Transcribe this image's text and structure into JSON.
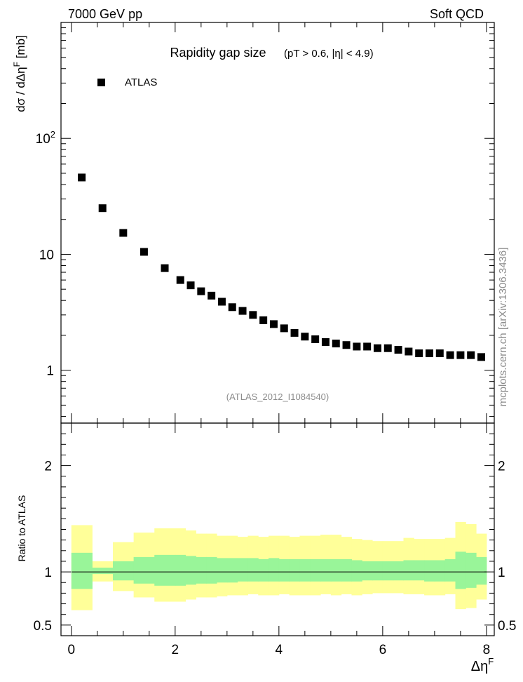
{
  "header": {
    "left": "7000 GeV pp",
    "right": "Soft QCD"
  },
  "title": {
    "main": "Rapidity gap size",
    "sub": "(pT > 0.6, |η| < 4.9)"
  },
  "legend": {
    "label": "ATLAS",
    "marker": "filled-square",
    "position": "top-left"
  },
  "analysis_id": "(ATLAS_2012_I1084540)",
  "side_credit": "mcplots.cern.ch [arXiv:1306.3436]",
  "colors": {
    "marker": "#000000",
    "band_inner": "#99f599",
    "band_outer": "#ffff99",
    "credit_grey": "#8c8c8c"
  },
  "chart_data": [
    {
      "type": "scatter",
      "title": "Rapidity gap size",
      "ylabel": "dσ / dΔη^F [mb]",
      "xlabel": "",
      "yscale": "log",
      "xlim": [
        -0.2,
        8.15
      ],
      "ylim": [
        0.35,
        1000
      ],
      "y_tick_labels": [
        "1",
        "10",
        "10^2"
      ],
      "series": [
        {
          "name": "ATLAS",
          "x": [
            0.2,
            0.6,
            1.0,
            1.4,
            1.8,
            2.1,
            2.3,
            2.5,
            2.7,
            2.9,
            3.1,
            3.3,
            3.5,
            3.7,
            3.9,
            4.1,
            4.3,
            4.5,
            4.7,
            4.9,
            5.1,
            5.3,
            5.5,
            5.7,
            5.9,
            6.1,
            6.3,
            6.5,
            6.7,
            6.9,
            7.1,
            7.3,
            7.5,
            7.7,
            7.9
          ],
          "y": [
            46,
            25,
            15.3,
            10.5,
            7.6,
            6.0,
            5.4,
            4.8,
            4.4,
            3.9,
            3.5,
            3.25,
            3.0,
            2.7,
            2.5,
            2.3,
            2.1,
            1.95,
            1.85,
            1.75,
            1.7,
            1.65,
            1.6,
            1.6,
            1.55,
            1.55,
            1.5,
            1.45,
            1.4,
            1.4,
            1.4,
            1.35,
            1.35,
            1.35,
            1.3
          ]
        }
      ]
    },
    {
      "type": "area",
      "ylabel": "Ratio to ATLAS",
      "xlabel": "Δη^F",
      "xlim": [
        -0.2,
        8.15
      ],
      "ylim": [
        0.4,
        2.4
      ],
      "x_tick_labels": [
        "0",
        "2",
        "4",
        "6",
        "8"
      ],
      "y_tick_labels": [
        "0.5",
        "1",
        "2"
      ],
      "reference_line": 1.0,
      "bins": [
        [
          0.0,
          0.4
        ],
        [
          0.4,
          0.8
        ],
        [
          0.8,
          1.2
        ],
        [
          1.2,
          1.6
        ],
        [
          1.6,
          2.0
        ],
        [
          2.0,
          2.2
        ],
        [
          2.2,
          2.4
        ],
        [
          2.4,
          2.6
        ],
        [
          2.6,
          2.8
        ],
        [
          2.8,
          3.0
        ],
        [
          3.0,
          3.2
        ],
        [
          3.2,
          3.4
        ],
        [
          3.4,
          3.6
        ],
        [
          3.6,
          3.8
        ],
        [
          3.8,
          4.0
        ],
        [
          4.0,
          4.2
        ],
        [
          4.2,
          4.4
        ],
        [
          4.4,
          4.6
        ],
        [
          4.6,
          4.8
        ],
        [
          4.8,
          5.0
        ],
        [
          5.0,
          5.2
        ],
        [
          5.2,
          5.4
        ],
        [
          5.4,
          5.6
        ],
        [
          5.6,
          5.8
        ],
        [
          5.8,
          6.0
        ],
        [
          6.0,
          6.2
        ],
        [
          6.2,
          6.4
        ],
        [
          6.4,
          6.6
        ],
        [
          6.6,
          6.8
        ],
        [
          6.8,
          7.0
        ],
        [
          7.0,
          7.2
        ],
        [
          7.2,
          7.4
        ],
        [
          7.4,
          7.6
        ],
        [
          7.6,
          7.8
        ],
        [
          7.8,
          8.0
        ]
      ],
      "series": [
        {
          "name": "",
          "low": [
            0.64,
            0.91,
            0.82,
            0.76,
            0.72,
            0.72,
            0.74,
            0.76,
            0.76,
            0.77,
            0.78,
            0.78,
            0.79,
            0.78,
            0.78,
            0.79,
            0.78,
            0.78,
            0.78,
            0.79,
            0.78,
            0.79,
            0.78,
            0.79,
            0.8,
            0.8,
            0.8,
            0.79,
            0.79,
            0.78,
            0.78,
            0.79,
            0.65,
            0.66,
            0.74
          ],
          "high": [
            1.44,
            1.1,
            1.28,
            1.37,
            1.41,
            1.41,
            1.39,
            1.36,
            1.36,
            1.34,
            1.34,
            1.33,
            1.34,
            1.33,
            1.34,
            1.34,
            1.33,
            1.34,
            1.34,
            1.35,
            1.35,
            1.33,
            1.31,
            1.3,
            1.29,
            1.29,
            1.29,
            1.32,
            1.31,
            1.31,
            1.31,
            1.32,
            1.47,
            1.45,
            1.36
          ]
        },
        {
          "name": "",
          "low": [
            0.84,
            0.98,
            0.92,
            0.89,
            0.87,
            0.87,
            0.88,
            0.89,
            0.89,
            0.9,
            0.9,
            0.91,
            0.91,
            0.91,
            0.91,
            0.91,
            0.91,
            0.91,
            0.91,
            0.91,
            0.91,
            0.91,
            0.91,
            0.92,
            0.92,
            0.92,
            0.92,
            0.92,
            0.92,
            0.91,
            0.91,
            0.91,
            0.84,
            0.85,
            0.88
          ],
          "high": [
            1.18,
            1.04,
            1.1,
            1.14,
            1.16,
            1.16,
            1.15,
            1.14,
            1.14,
            1.13,
            1.13,
            1.13,
            1.13,
            1.12,
            1.13,
            1.12,
            1.12,
            1.12,
            1.12,
            1.12,
            1.12,
            1.12,
            1.11,
            1.1,
            1.1,
            1.1,
            1.1,
            1.11,
            1.11,
            1.11,
            1.11,
            1.12,
            1.19,
            1.18,
            1.14
          ]
        }
      ]
    }
  ]
}
